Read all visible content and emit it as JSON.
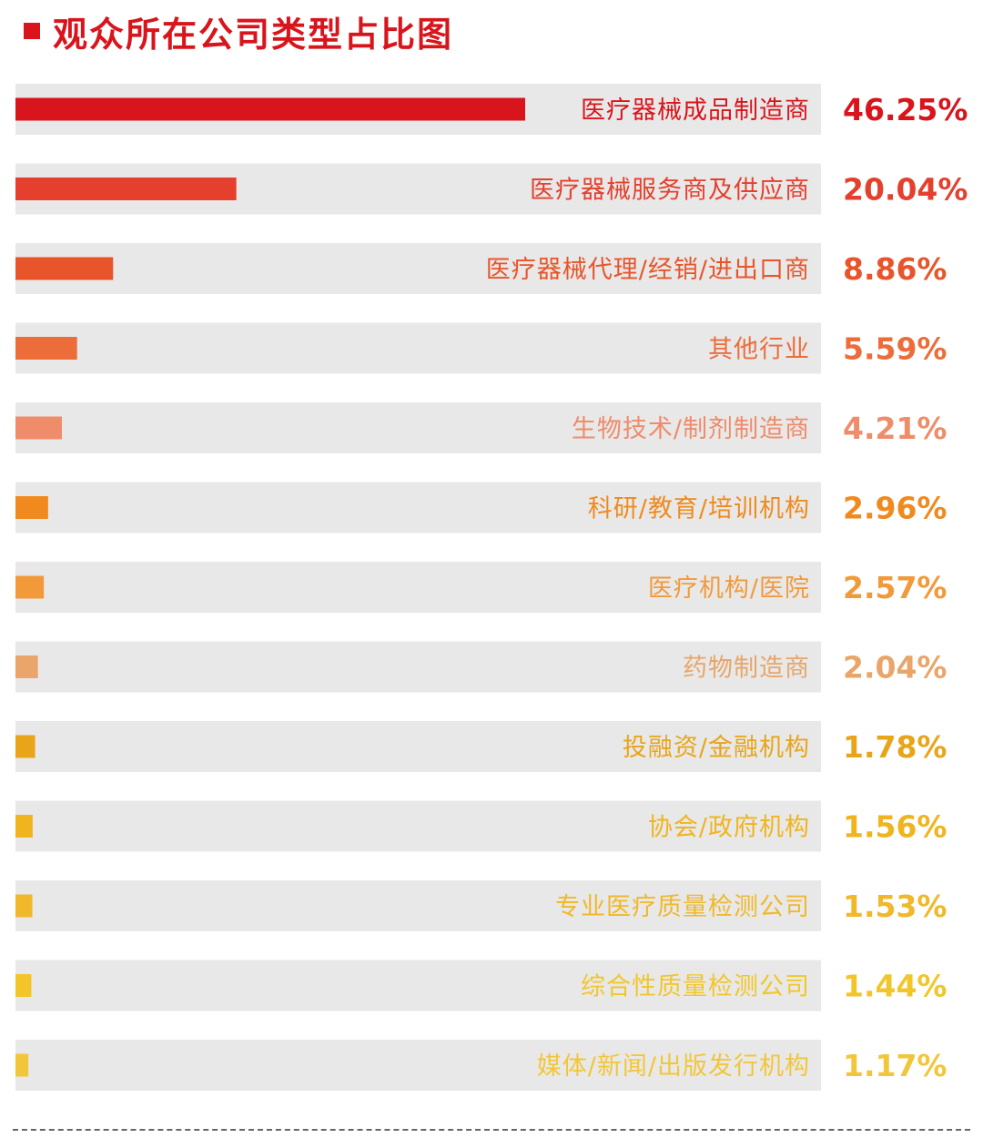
{
  "header": {
    "title": "观众所在公司类型占比图",
    "accent": "#d8151c"
  },
  "chart_data": {
    "type": "bar",
    "orientation": "horizontal",
    "title": "观众所在公司类型占比图",
    "xlabel": "",
    "ylabel": "",
    "unit": "%",
    "xlim": [
      0,
      100
    ],
    "grid": false,
    "legend": "none",
    "categories": [
      "医疗器械成品制造商",
      "医疗器械服务商及供应商",
      "医疗器械代理/经销/进出口商",
      "其他行业",
      "生物技术/制剂制造商",
      "科研/教育/培训机构",
      "医疗机构/医院",
      "药物制造商",
      "投融资/金融机构",
      "协会/政府机构",
      "专业医疗质量检测公司",
      "综合性质量检测公司",
      "媒体/新闻/出版发行机构"
    ],
    "values": [
      46.25,
      20.04,
      8.86,
      5.59,
      4.21,
      2.96,
      2.57,
      2.04,
      1.78,
      1.56,
      1.53,
      1.44,
      1.17
    ],
    "value_labels": [
      "46.25%",
      "20.04%",
      "8.86%",
      "5.59%",
      "4.21%",
      "2.96%",
      "2.57%",
      "2.04%",
      "1.78%",
      "1.56%",
      "1.53%",
      "1.44%",
      "1.17%"
    ],
    "colors": [
      "#d8151c",
      "#e5402d",
      "#e8552a",
      "#ec6d3a",
      "#ef8c6a",
      "#f08a1e",
      "#f29a3a",
      "#e9a56a",
      "#e8a51a",
      "#f0b41e",
      "#f0b82a",
      "#f2c62a",
      "#f2c63a"
    ],
    "track_color": "#e8e8e8"
  }
}
